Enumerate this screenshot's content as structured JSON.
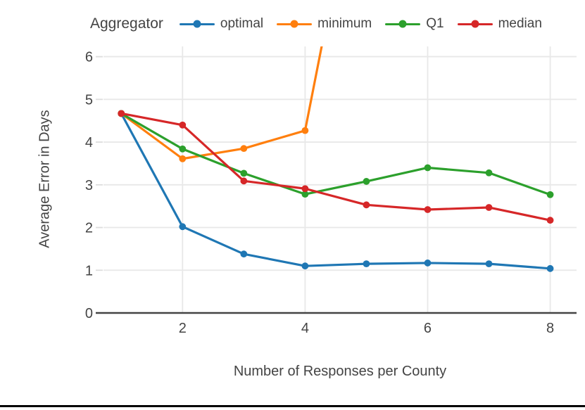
{
  "legend": {
    "title": "Aggregator"
  },
  "axes": {
    "x_title": "Number of Responses per County",
    "y_title": "Average Error in Days"
  },
  "chart_data": {
    "type": "line",
    "title": "",
    "legend_title": "Aggregator",
    "xlabel": "Number of Responses per County",
    "ylabel": "Average Error in Days",
    "x": [
      1,
      2,
      3,
      4,
      5,
      6,
      7,
      8
    ],
    "xticks": [
      2,
      4,
      6,
      8
    ],
    "yticks": [
      0,
      1,
      2,
      3,
      4,
      5,
      6
    ],
    "xlim": [
      0.71,
      8.43
    ],
    "ylim": [
      0,
      6.24
    ],
    "grid": true,
    "legend_position": "top",
    "series": [
      {
        "name": "optimal",
        "color": "#1f77b4",
        "values": [
          4.67,
          2.02,
          1.38,
          1.1,
          1.15,
          1.17,
          1.15,
          1.04
        ]
      },
      {
        "name": "minimum",
        "color": "#ff7f0e",
        "values": [
          4.67,
          3.61,
          3.85,
          4.27
        ],
        "offchart_exit": {
          "x": 4.32,
          "y": 6.6
        },
        "note": "line continues above plot top after x=4"
      },
      {
        "name": "Q1",
        "color": "#2ca02c",
        "values": [
          4.67,
          3.84,
          3.27,
          2.78,
          3.08,
          3.4,
          3.28,
          2.77
        ]
      },
      {
        "name": "median",
        "color": "#d62728",
        "values": [
          4.67,
          4.4,
          3.09,
          2.91,
          2.53,
          2.42,
          2.47,
          2.17
        ]
      }
    ]
  },
  "colors": {
    "background": "#ffffff",
    "text": "#444444",
    "grid": "#e8e8e8",
    "axis_line": "#444444",
    "tick": "#dddddd",
    "divider": "#000000"
  }
}
